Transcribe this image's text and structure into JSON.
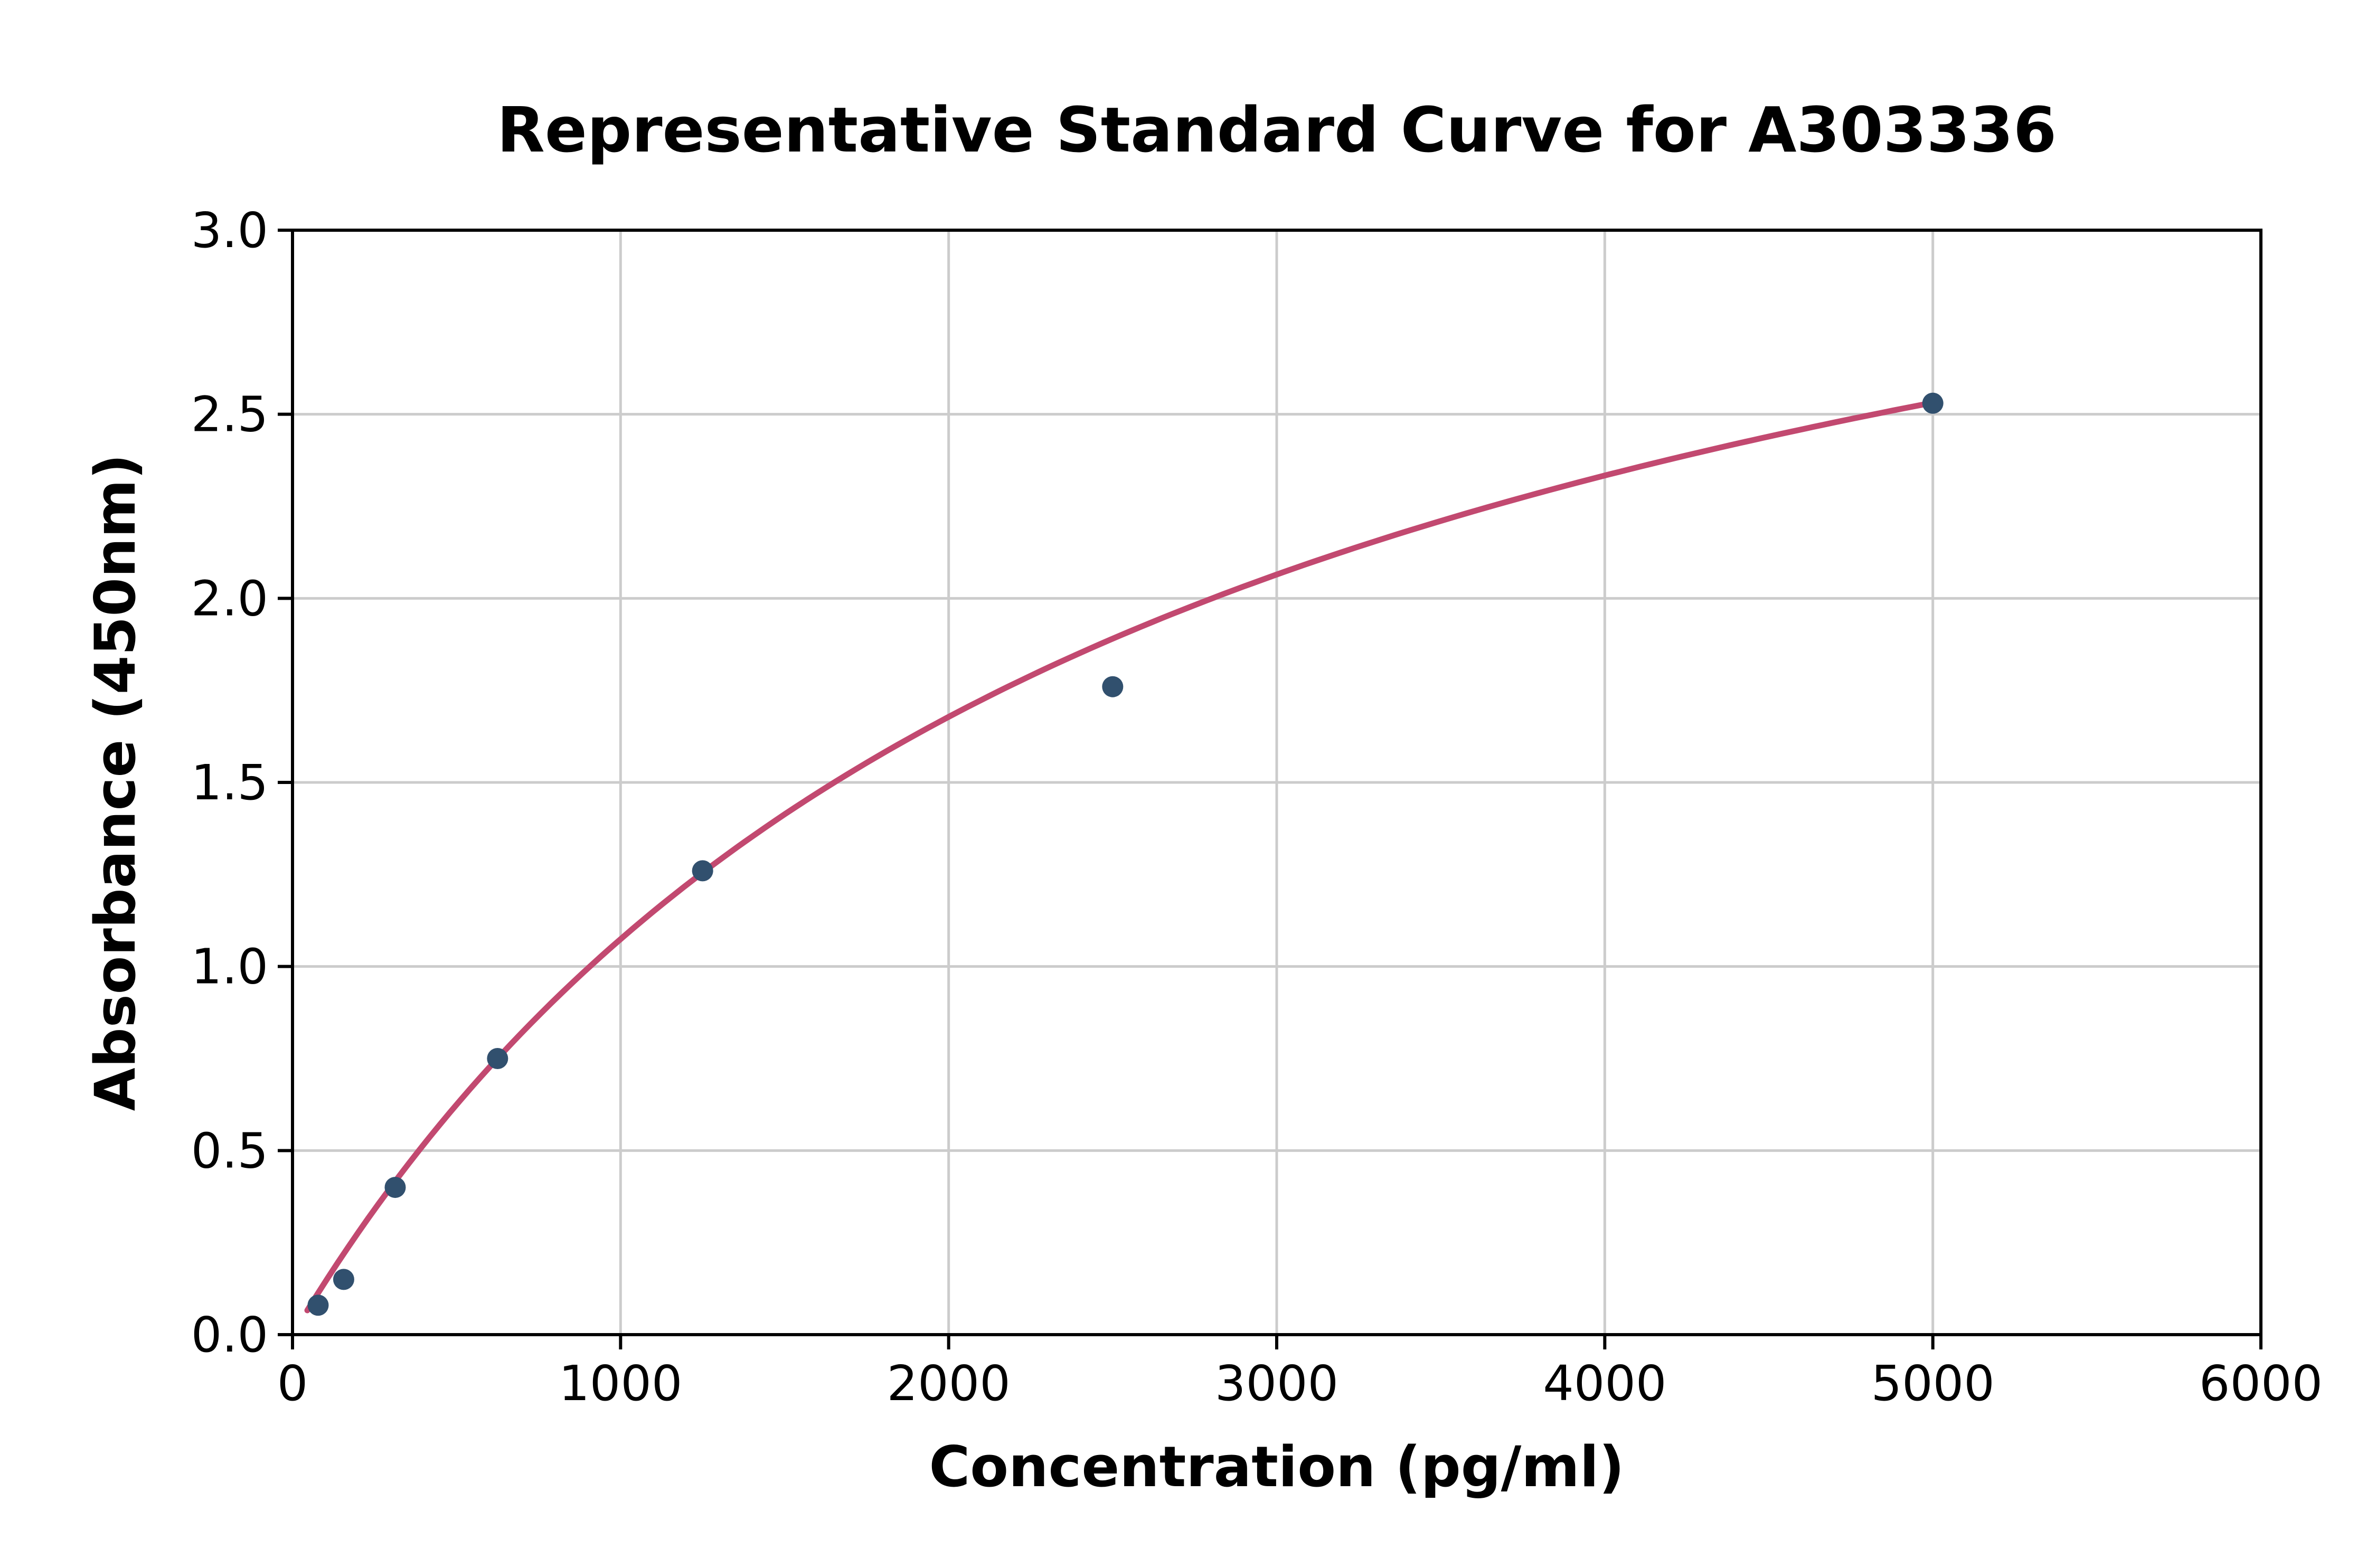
{
  "page": {
    "background_color": "#ffffff"
  },
  "chart_data": {
    "type": "scatter",
    "title": "Representative Standard Curve for A303336",
    "xlabel": "Concentration (pg/ml)",
    "ylabel": "Absorbance (450nm)",
    "xlim": [
      0,
      6000
    ],
    "ylim": [
      0,
      3.0
    ],
    "x_ticks": [
      0,
      1000,
      2000,
      3000,
      4000,
      5000,
      6000
    ],
    "x_tick_labels": [
      "0",
      "1000",
      "2000",
      "3000",
      "4000",
      "5000",
      "6000"
    ],
    "y_ticks": [
      0.0,
      0.5,
      1.0,
      1.5,
      2.0,
      2.5,
      3.0
    ],
    "y_tick_labels": [
      "0.0",
      "0.5",
      "1.0",
      "1.5",
      "2.0",
      "2.5",
      "3.0"
    ],
    "grid": true,
    "legend": "none",
    "points": [
      {
        "x": 78,
        "y": 0.08
      },
      {
        "x": 156,
        "y": 0.15
      },
      {
        "x": 313,
        "y": 0.4
      },
      {
        "x": 625,
        "y": 0.75
      },
      {
        "x": 1250,
        "y": 1.26
      },
      {
        "x": 2500,
        "y": 1.76
      },
      {
        "x": 5000,
        "y": 2.53
      }
    ],
    "fit_curve": {
      "model": "saturation (y = Vmax*x / (K + x))",
      "vmax": 3.83,
      "k": 2565,
      "x_start": 45,
      "x_end": 5005
    },
    "colors": {
      "point": "#31506e",
      "curve": "#c24970",
      "grid": "#cccccc",
      "axis": "#000000",
      "text": "#000000"
    }
  }
}
